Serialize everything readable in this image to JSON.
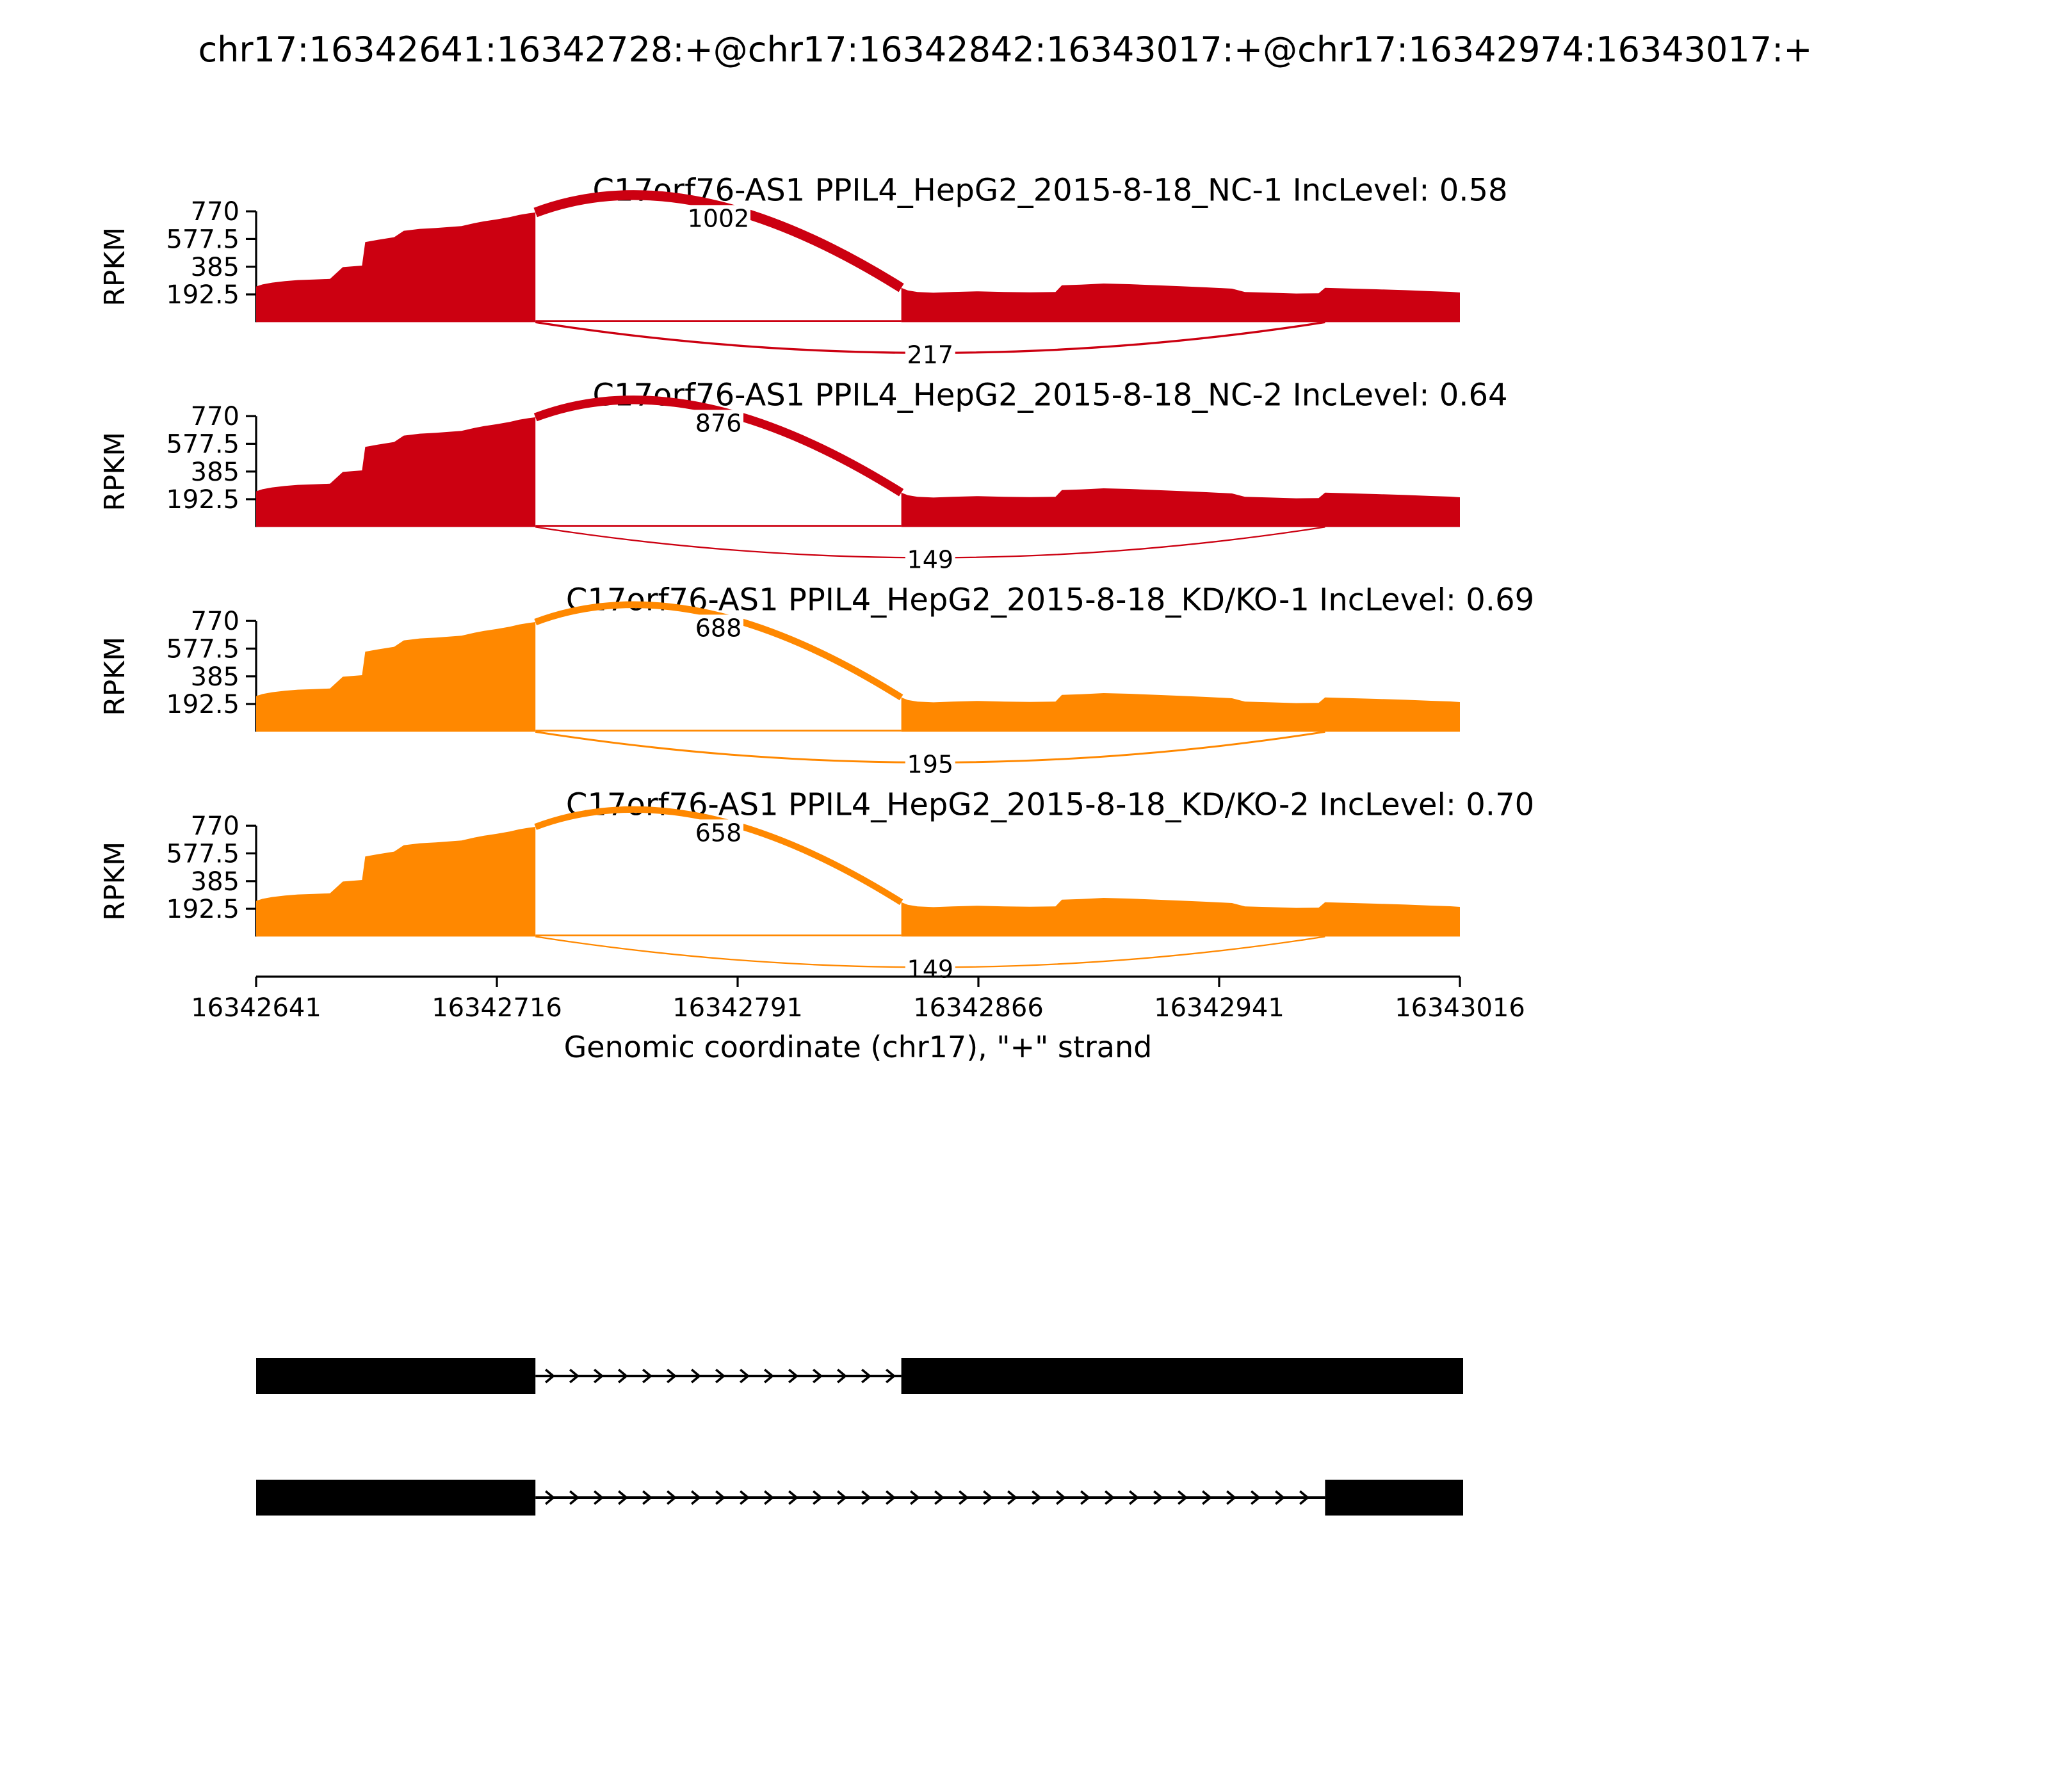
{
  "title": "chr17:16342641:16342728:+@chr17:16342842:16343017:+@chr17:16342974:16343017:+",
  "chart_data": {
    "type": "area",
    "title": "chr17:16342641:16342728:+@chr17:16342842:16343017:+@chr17:16342974:16343017:+",
    "xlabel": "Genomic coordinate (chr17), \"+\" strand",
    "ylabel": "RPKM",
    "x_range": [
      16342641,
      16343016
    ],
    "y_range": [
      0,
      770
    ],
    "x_ticks": [
      16342641,
      16342716,
      16342791,
      16342866,
      16342941,
      16343016
    ],
    "y_ticks": [
      770,
      577.5,
      385,
      192.5
    ],
    "grid": false,
    "legend": "none",
    "colors": {
      "control": "#CC0011",
      "knockdown": "#FF8800"
    },
    "tracks": [
      {
        "label": "C17orf76-AS1 PPIL4_HepG2_2015-8-18_NC-1 IncLevel: 0.58",
        "inc_level": 0.58,
        "color": "#CC0011",
        "junctions": [
          {
            "from": 16342728,
            "to": 16342842,
            "count": 1002,
            "position": "top"
          },
          {
            "from": 16342728,
            "to": 16342974,
            "count": 217,
            "position": "bottom"
          }
        ]
      },
      {
        "label": "C17orf76-AS1 PPIL4_HepG2_2015-8-18_NC-2 IncLevel: 0.64",
        "inc_level": 0.64,
        "color": "#CC0011",
        "junctions": [
          {
            "from": 16342728,
            "to": 16342842,
            "count": 876,
            "position": "top"
          },
          {
            "from": 16342728,
            "to": 16342974,
            "count": 149,
            "position": "bottom"
          }
        ]
      },
      {
        "label": "C17orf76-AS1 PPIL4_HepG2_2015-8-18_KD/KO-1 IncLevel: 0.69",
        "inc_level": 0.69,
        "color": "#FF8800",
        "junctions": [
          {
            "from": 16342728,
            "to": 16342842,
            "count": 688,
            "position": "top"
          },
          {
            "from": 16342728,
            "to": 16342974,
            "count": 195,
            "position": "bottom"
          }
        ]
      },
      {
        "label": "C17orf76-AS1 PPIL4_HepG2_2015-8-18_KD/KO-2 IncLevel: 0.70",
        "inc_level": 0.7,
        "color": "#FF8800",
        "junctions": [
          {
            "from": 16342728,
            "to": 16342842,
            "count": 658,
            "position": "top"
          },
          {
            "from": 16342728,
            "to": 16342974,
            "count": 149,
            "position": "bottom"
          }
        ]
      }
    ],
    "coverage": {
      "regions": [
        {
          "points": [
            [
              16342641,
              248
            ],
            [
              16342643,
              262
            ],
            [
              16342646,
              275
            ],
            [
              16342650,
              285
            ],
            [
              16342654,
              292
            ],
            [
              16342659,
              296
            ],
            [
              16342664,
              300
            ],
            [
              16342668,
              382
            ],
            [
              16342674,
              393
            ],
            [
              16342675,
              556
            ],
            [
              16342679,
              572
            ],
            [
              16342684,
              590
            ],
            [
              16342687,
              635
            ],
            [
              16342692,
              648
            ],
            [
              16342697,
              654
            ],
            [
              16342701,
              660
            ],
            [
              16342705,
              667
            ],
            [
              16342709,
              688
            ],
            [
              16342712,
              700
            ],
            [
              16342716,
              714
            ],
            [
              16342720,
              730
            ],
            [
              16342723,
              745
            ],
            [
              16342726,
              756
            ],
            [
              16342728,
              762
            ]
          ]
        },
        {
          "points": [
            [
              16342842,
              238
            ],
            [
              16342844,
              220
            ],
            [
              16342847,
              210
            ],
            [
              16342852,
              204
            ],
            [
              16342858,
              210
            ],
            [
              16342866,
              214
            ],
            [
              16342874,
              210
            ],
            [
              16342882,
              207
            ],
            [
              16342890,
              210
            ],
            [
              16342892,
              256
            ],
            [
              16342898,
              260
            ],
            [
              16342905,
              268
            ],
            [
              16342913,
              264
            ],
            [
              16342921,
              257
            ],
            [
              16342929,
              250
            ],
            [
              16342937,
              242
            ],
            [
              16342945,
              233
            ],
            [
              16342949,
              210
            ],
            [
              16342957,
              204
            ],
            [
              16342965,
              199
            ],
            [
              16342972,
              201
            ],
            [
              16342974,
              238
            ],
            [
              16342981,
              234
            ],
            [
              16342990,
              228
            ],
            [
              16342999,
              222
            ],
            [
              16343007,
              215
            ],
            [
              16343013,
              211
            ],
            [
              16343016,
              206
            ]
          ]
        }
      ]
    },
    "intron_line": [
      16342728,
      16342842
    ],
    "transcripts": [
      {
        "exons": [
          [
            16342641,
            16342728
          ],
          [
            16342842,
            16343017
          ]
        ]
      },
      {
        "exons": [
          [
            16342641,
            16342728
          ],
          [
            16342974,
            16343017
          ]
        ]
      }
    ]
  }
}
